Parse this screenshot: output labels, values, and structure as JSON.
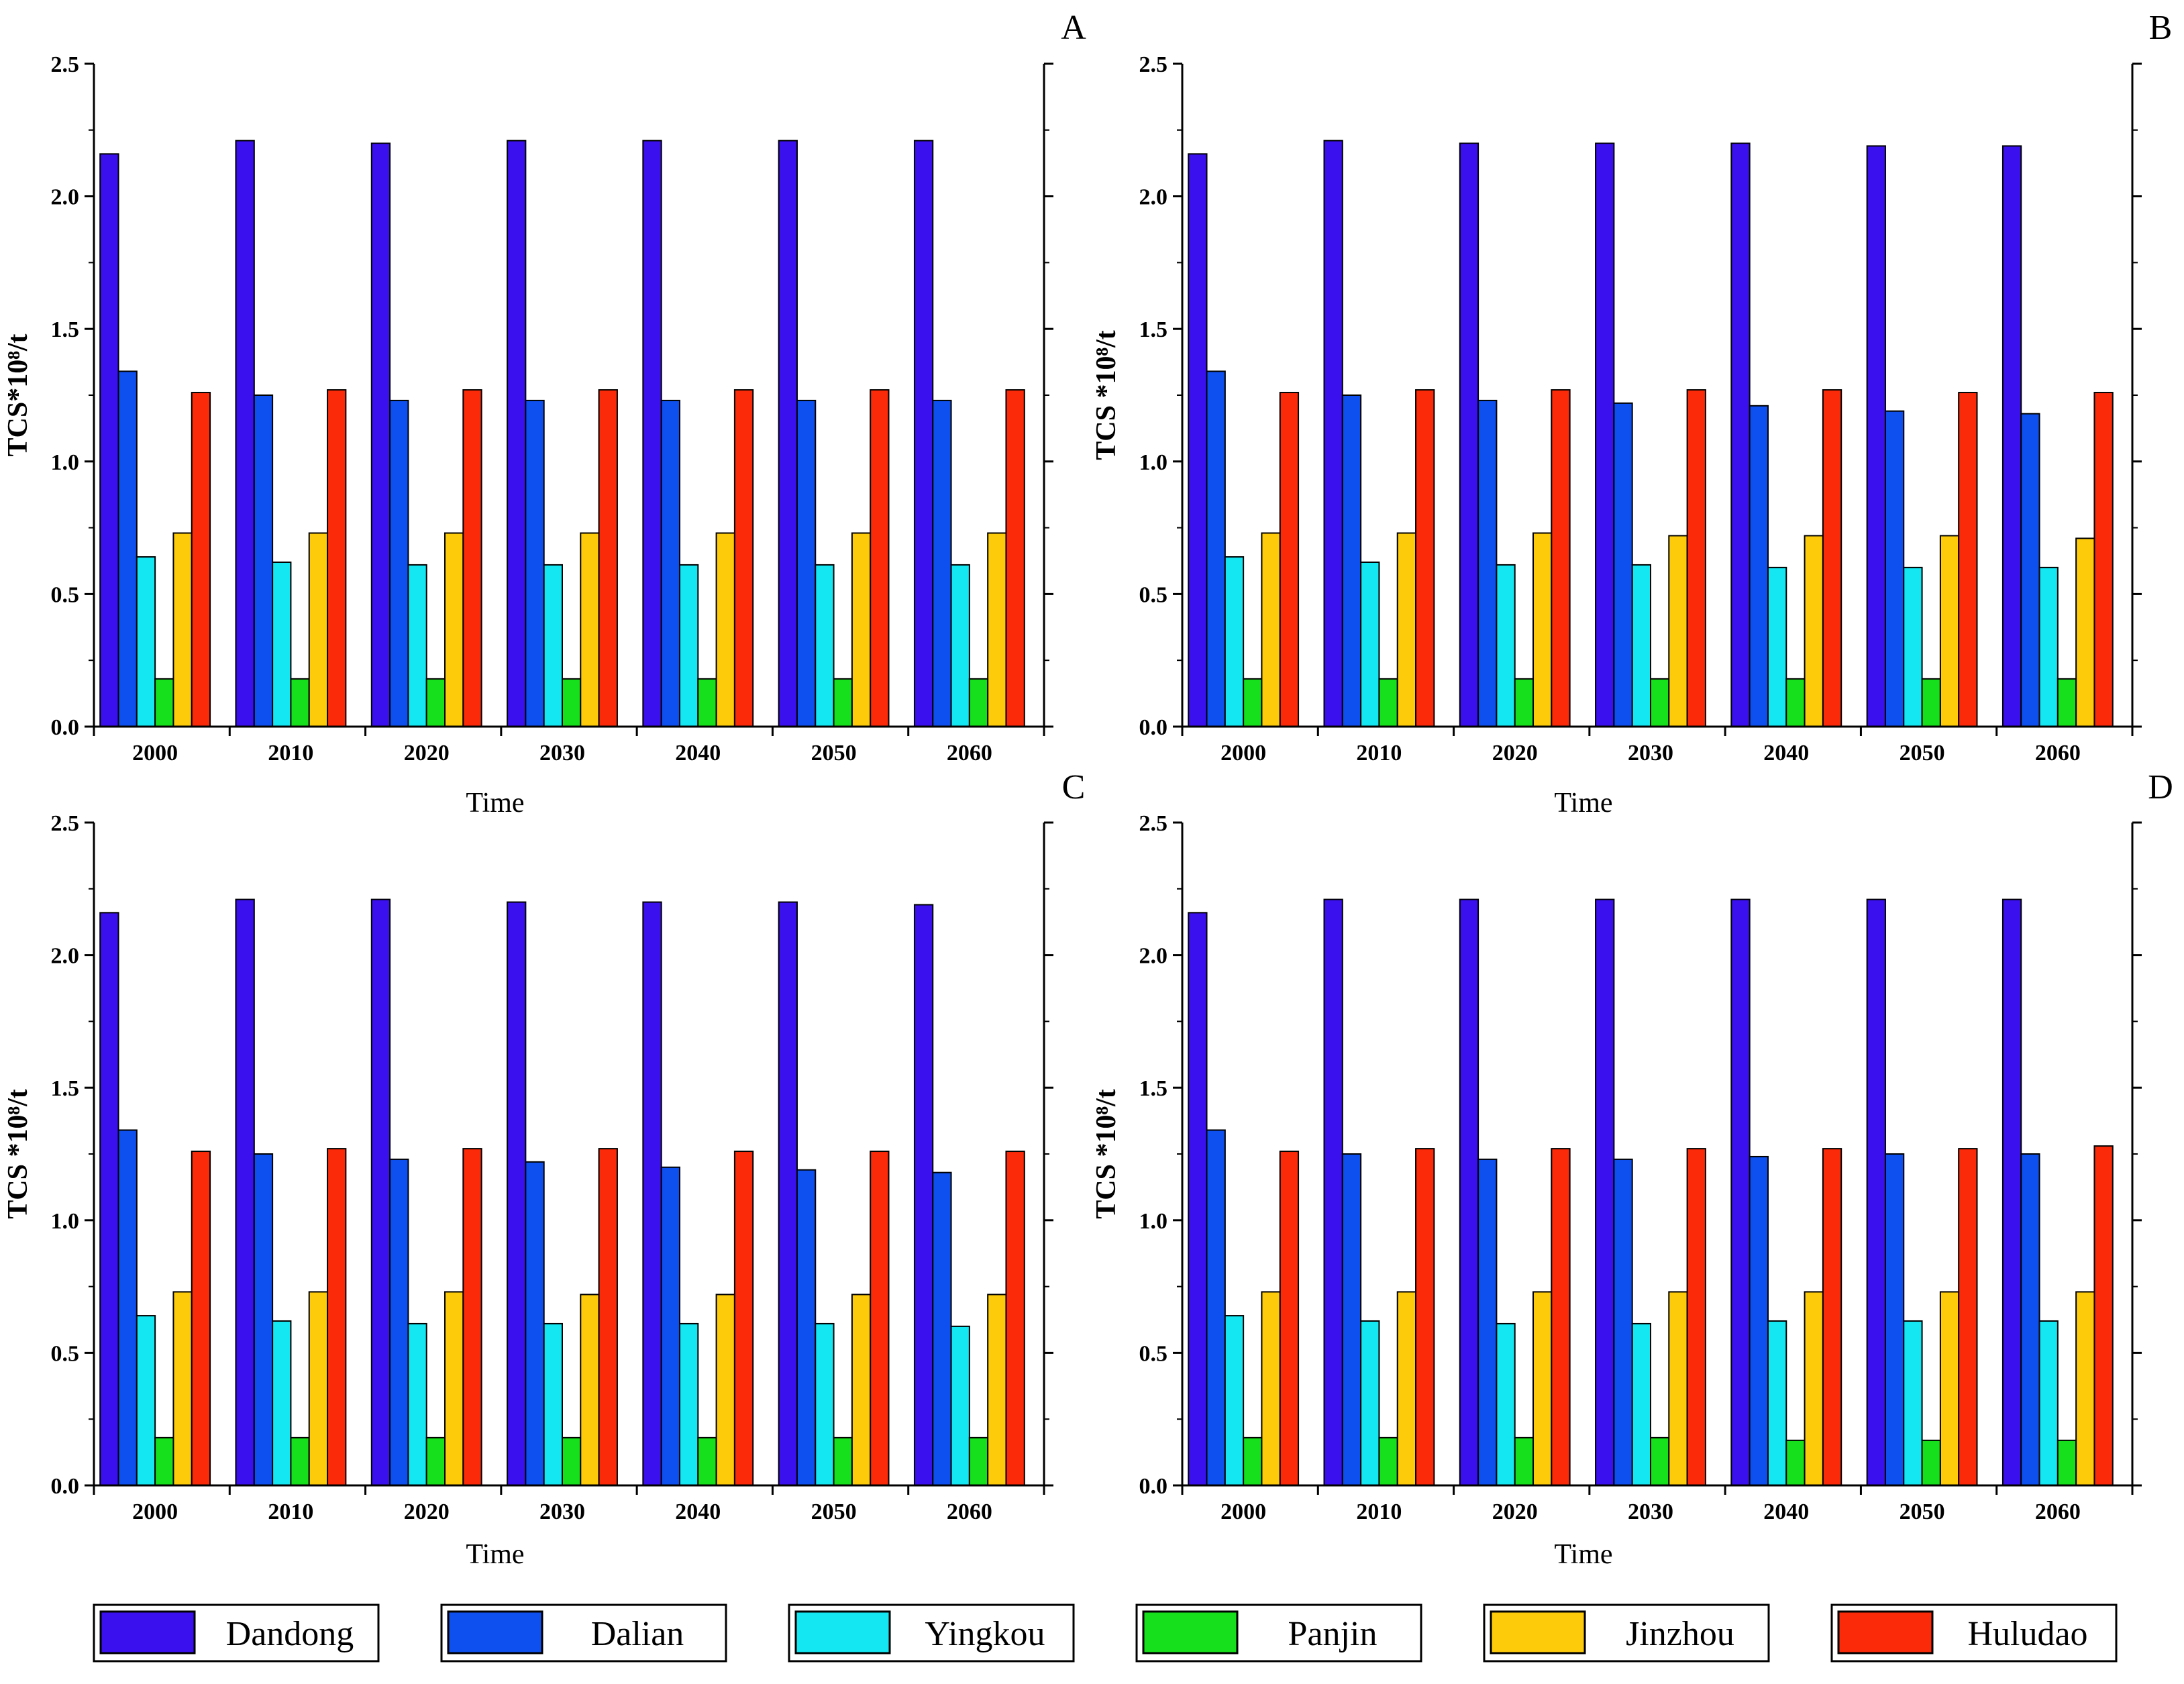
{
  "chart_data": [
    {
      "type": "bar",
      "panel": "A",
      "xlabel": "Time",
      "ylabel": "TCS*10⁸/t",
      "ylim": [
        0,
        2.5
      ],
      "yticks": [
        "0.0",
        "0.5",
        "1.0",
        "1.5",
        "2.0",
        "2.5"
      ],
      "categories": [
        "2000",
        "2010",
        "2020",
        "2030",
        "2040",
        "2050",
        "2060"
      ],
      "series": [
        {
          "name": "Dandong",
          "values": [
            2.16,
            2.21,
            2.2,
            2.21,
            2.21,
            2.21,
            2.21
          ]
        },
        {
          "name": "Dalian",
          "values": [
            1.34,
            1.25,
            1.23,
            1.23,
            1.23,
            1.23,
            1.23
          ]
        },
        {
          "name": "Yingkou",
          "values": [
            0.64,
            0.62,
            0.61,
            0.61,
            0.61,
            0.61,
            0.61
          ]
        },
        {
          "name": "Panjin",
          "values": [
            0.18,
            0.18,
            0.18,
            0.18,
            0.18,
            0.18,
            0.18
          ]
        },
        {
          "name": "Jinzhou",
          "values": [
            0.73,
            0.73,
            0.73,
            0.73,
            0.73,
            0.73,
            0.73
          ]
        },
        {
          "name": "Huludao",
          "values": [
            1.26,
            1.27,
            1.27,
            1.27,
            1.27,
            1.27,
            1.27
          ]
        }
      ]
    },
    {
      "type": "bar",
      "panel": "B",
      "xlabel": "Time",
      "ylabel": "TCS *10⁸/t",
      "ylim": [
        0,
        2.5
      ],
      "yticks": [
        "0.0",
        "0.5",
        "1.0",
        "1.5",
        "2.0",
        "2.5"
      ],
      "categories": [
        "2000",
        "2010",
        "2020",
        "2030",
        "2040",
        "2050",
        "2060"
      ],
      "series": [
        {
          "name": "Dandong",
          "values": [
            2.16,
            2.21,
            2.2,
            2.2,
            2.2,
            2.19,
            2.19
          ]
        },
        {
          "name": "Dalian",
          "values": [
            1.34,
            1.25,
            1.23,
            1.22,
            1.21,
            1.19,
            1.18
          ]
        },
        {
          "name": "Yingkou",
          "values": [
            0.64,
            0.62,
            0.61,
            0.61,
            0.6,
            0.6,
            0.6
          ]
        },
        {
          "name": "Panjin",
          "values": [
            0.18,
            0.18,
            0.18,
            0.18,
            0.18,
            0.18,
            0.18
          ]
        },
        {
          "name": "Jinzhou",
          "values": [
            0.73,
            0.73,
            0.73,
            0.72,
            0.72,
            0.72,
            0.71
          ]
        },
        {
          "name": "Huludao",
          "values": [
            1.26,
            1.27,
            1.27,
            1.27,
            1.27,
            1.26,
            1.26
          ]
        }
      ]
    },
    {
      "type": "bar",
      "panel": "C",
      "xlabel": "Time",
      "ylabel": "TCS *10⁸/t",
      "ylim": [
        0,
        2.5
      ],
      "yticks": [
        "0.0",
        "0.5",
        "1.0",
        "1.5",
        "2.0",
        "2.5"
      ],
      "categories": [
        "2000",
        "2010",
        "2020",
        "2030",
        "2040",
        "2050",
        "2060"
      ],
      "series": [
        {
          "name": "Dandong",
          "values": [
            2.16,
            2.21,
            2.21,
            2.2,
            2.2,
            2.2,
            2.19
          ]
        },
        {
          "name": "Dalian",
          "values": [
            1.34,
            1.25,
            1.23,
            1.22,
            1.2,
            1.19,
            1.18
          ]
        },
        {
          "name": "Yingkou",
          "values": [
            0.64,
            0.62,
            0.61,
            0.61,
            0.61,
            0.61,
            0.6
          ]
        },
        {
          "name": "Panjin",
          "values": [
            0.18,
            0.18,
            0.18,
            0.18,
            0.18,
            0.18,
            0.18
          ]
        },
        {
          "name": "Jinzhou",
          "values": [
            0.73,
            0.73,
            0.73,
            0.72,
            0.72,
            0.72,
            0.72
          ]
        },
        {
          "name": "Huludao",
          "values": [
            1.26,
            1.27,
            1.27,
            1.27,
            1.26,
            1.26,
            1.26
          ]
        }
      ]
    },
    {
      "type": "bar",
      "panel": "D",
      "xlabel": "Time",
      "ylabel": "TCS *10⁸/t",
      "ylim": [
        0,
        2.5
      ],
      "yticks": [
        "0.0",
        "0.5",
        "1.0",
        "1.5",
        "2.0",
        "2.5"
      ],
      "categories": [
        "2000",
        "2010",
        "2020",
        "2030",
        "2040",
        "2050",
        "2060"
      ],
      "series": [
        {
          "name": "Dandong",
          "values": [
            2.16,
            2.21,
            2.21,
            2.21,
            2.21,
            2.21,
            2.21
          ]
        },
        {
          "name": "Dalian",
          "values": [
            1.34,
            1.25,
            1.23,
            1.23,
            1.24,
            1.25,
            1.25
          ]
        },
        {
          "name": "Yingkou",
          "values": [
            0.64,
            0.62,
            0.61,
            0.61,
            0.62,
            0.62,
            0.62
          ]
        },
        {
          "name": "Panjin",
          "values": [
            0.18,
            0.18,
            0.18,
            0.18,
            0.17,
            0.17,
            0.17
          ]
        },
        {
          "name": "Jinzhou",
          "values": [
            0.73,
            0.73,
            0.73,
            0.73,
            0.73,
            0.73,
            0.73
          ]
        },
        {
          "name": "Huludao",
          "values": [
            1.26,
            1.27,
            1.27,
            1.27,
            1.27,
            1.27,
            1.28
          ]
        }
      ]
    }
  ],
  "colors": {
    "Dandong": "#3a10ee",
    "Dalian": "#0e50ef",
    "Yingkou": "#14e6f2",
    "Panjin": "#16e01b",
    "Jinzhou": "#fecb0b",
    "Huludao": "#fb2a08"
  },
  "legend": {
    "position": "bottom",
    "items": [
      "Dandong",
      "Dalian",
      "Yingkou",
      "Panjin",
      "Jinzhou",
      "Huludao"
    ]
  }
}
